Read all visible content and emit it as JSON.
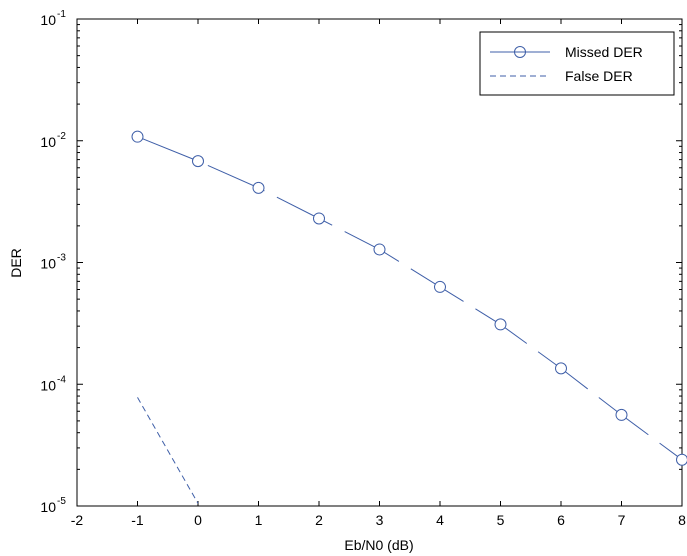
{
  "chart_data": {
    "type": "line",
    "title": "",
    "xlabel": "Eb/N0 (dB)",
    "ylabel": "DER",
    "xlim": [
      -2,
      8
    ],
    "ylim": [
      1e-05,
      0.1
    ],
    "yscale": "log",
    "grid": false,
    "legend_position": "top-right",
    "x_ticks": [
      "-2",
      "-1",
      "0",
      "1",
      "2",
      "3",
      "4",
      "5",
      "6",
      "7",
      "8"
    ],
    "y_ticks": [
      {
        "value": 1e-05,
        "base": "10",
        "exp": "-5"
      },
      {
        "value": 0.0001,
        "base": "10",
        "exp": "-4"
      },
      {
        "value": 0.001,
        "base": "10",
        "exp": "-3"
      },
      {
        "value": 0.01,
        "base": "10",
        "exp": "-2"
      },
      {
        "value": 0.1,
        "base": "10",
        "exp": "-1"
      }
    ],
    "series": [
      {
        "name": "Missed DER",
        "style": "solid-with-circles",
        "color": "#3f5fa8",
        "x": [
          -1,
          0,
          1,
          2,
          3,
          4,
          5,
          6,
          7,
          8
        ],
        "y": [
          0.0108,
          0.0068,
          0.0041,
          0.0023,
          0.00128,
          0.00063,
          0.00031,
          0.000135,
          5.6e-05,
          2.4e-05
        ]
      },
      {
        "name": "False DER",
        "style": "dashed",
        "color": "#3f5fa8",
        "x": [
          -1,
          0
        ],
        "y": [
          7.8e-05,
          1.05e-05
        ]
      }
    ]
  }
}
